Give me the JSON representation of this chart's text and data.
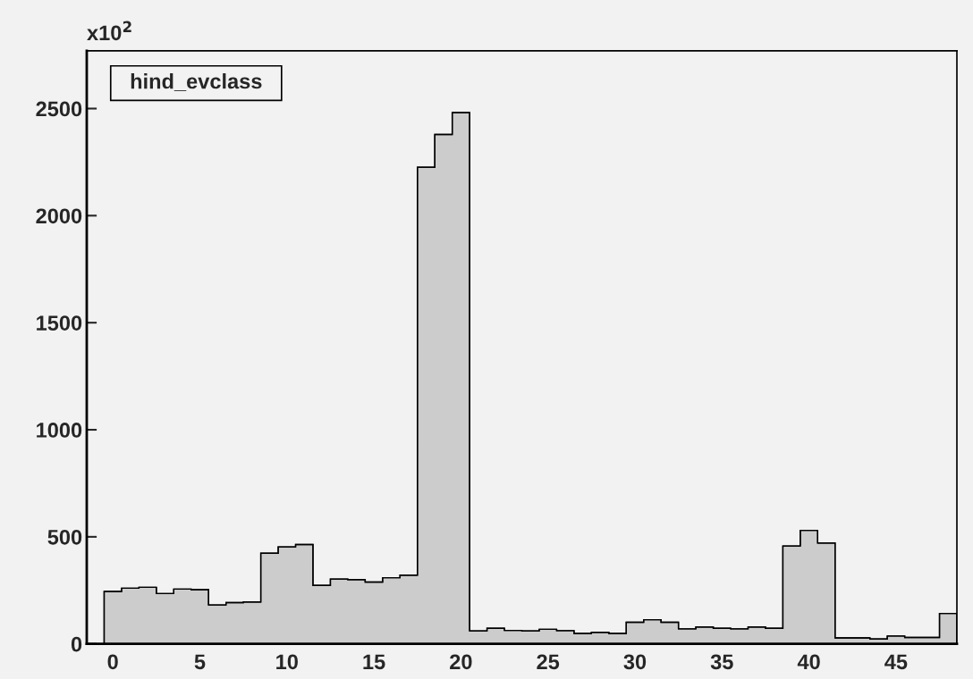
{
  "chart_data": {
    "type": "histogram",
    "title": "hind_evclass",
    "bins": [
      -1.5,
      -0.5,
      0.5,
      1.5,
      2.5,
      3.5,
      4.5,
      5.5,
      6.5,
      7.5,
      8.5,
      9.5,
      10.5,
      11.5,
      12.5,
      13.5,
      14.5,
      15.5,
      16.5,
      17.5,
      18.5,
      19.5,
      20.5,
      21.5,
      22.5,
      23.5,
      24.5,
      25.5,
      26.5,
      27.5,
      28.5,
      29.5,
      30.5,
      31.5,
      32.5,
      33.5,
      34.5,
      35.5,
      36.5,
      37.5,
      38.5,
      39.5,
      40.5,
      41.5,
      42.5,
      43.5,
      44.5,
      45.5,
      46.5,
      47.5,
      48.5
    ],
    "values": [
      0,
      245,
      260,
      264,
      235,
      256,
      253,
      182,
      193,
      196,
      423,
      453,
      464,
      273,
      303,
      300,
      289,
      309,
      321,
      2226,
      2379,
      2481,
      61,
      73,
      63,
      61,
      68,
      62,
      49,
      54,
      49,
      101,
      113,
      101,
      70,
      79,
      73,
      70,
      79,
      73,
      457,
      530,
      471,
      28,
      28,
      23,
      37,
      30,
      30,
      142
    ],
    "color": "#cccccc",
    "xlim": [
      -1.5,
      48.5
    ],
    "xticks": [
      0,
      5,
      10,
      15,
      20,
      25,
      30,
      35,
      40,
      45
    ],
    "ylim": [
      0,
      2770
    ],
    "yticks": [
      0,
      500,
      1000,
      1500,
      2000,
      2500
    ],
    "annotations": [
      "x10$^{2}$"
    ],
    "grid": false
  }
}
